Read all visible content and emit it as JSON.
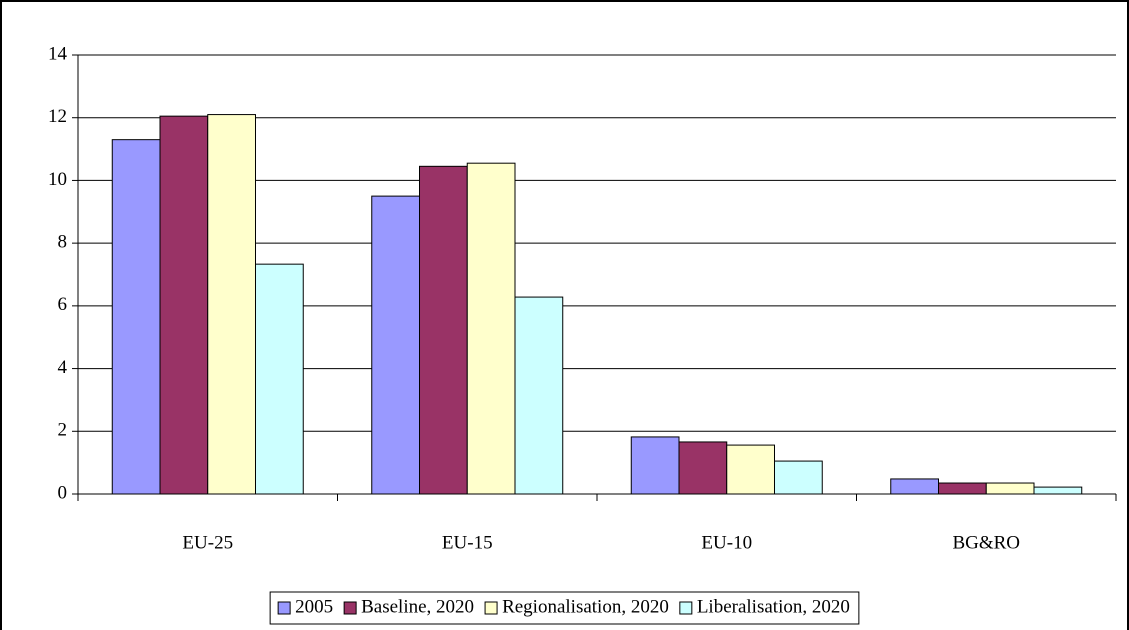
{
  "chart_data": {
    "type": "bar",
    "categories": [
      "EU-25",
      "EU-15",
      "EU-10",
      "BG&RO"
    ],
    "series": [
      {
        "name": "2005",
        "color": "#9999ff",
        "values": [
          11.3,
          9.5,
          1.82,
          0.48
        ]
      },
      {
        "name": "Baseline, 2020",
        "color": "#993366",
        "values": [
          12.05,
          10.45,
          1.66,
          0.35
        ]
      },
      {
        "name": "Regionalisation, 2020",
        "color": "#ffffcc",
        "values": [
          12.1,
          10.55,
          1.56,
          0.35
        ]
      },
      {
        "name": "Liberalisation, 2020",
        "color": "#ccffff",
        "values": [
          7.33,
          6.28,
          1.05,
          0.22
        ]
      }
    ],
    "ylim": [
      0,
      14
    ],
    "yticks": [
      0,
      2,
      4,
      6,
      8,
      10,
      12,
      14
    ],
    "grid": true,
    "legend": "bottom"
  }
}
